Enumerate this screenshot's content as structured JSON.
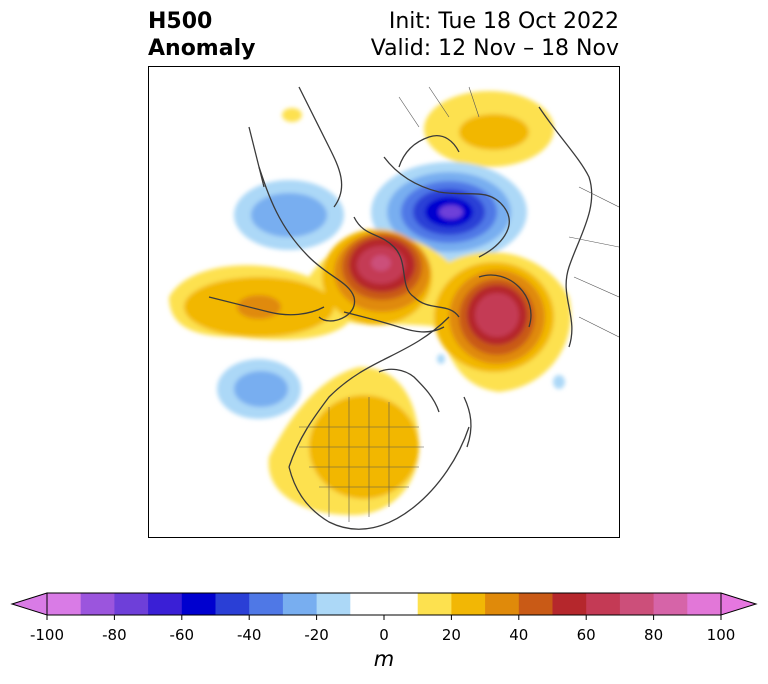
{
  "header": {
    "title_line1": "H500",
    "title_line2": "Anomaly",
    "init": "Init: Tue 18 Oct 2022",
    "valid": "Valid: 12 Nov – 18 Nov"
  },
  "colorbar": {
    "unit": "m",
    "ticks": [
      "-100",
      "-80",
      "-60",
      "-40",
      "-20",
      "0",
      "20",
      "40",
      "60",
      "80",
      "100"
    ],
    "levels": [
      -100,
      -90,
      -80,
      -70,
      -60,
      -50,
      -40,
      -30,
      -20,
      -10,
      10,
      20,
      30,
      40,
      50,
      60,
      70,
      80,
      90,
      100
    ],
    "colors": [
      "#d97be6",
      "#9b55dd",
      "#6e3fd9",
      "#3a1fd6",
      "#0000cf",
      "#2a3fd6",
      "#4f78e6",
      "#78aef0",
      "#acd8f7",
      "#ffffff",
      "#fde14f",
      "#f2b705",
      "#e08a0a",
      "#c95a16",
      "#b5272c",
      "#c43a55",
      "#cc4f7a",
      "#d664a8",
      "#e277d8"
    ],
    "extend_low_color": "#d97be6",
    "extend_high_color": "#e677e0"
  }
}
